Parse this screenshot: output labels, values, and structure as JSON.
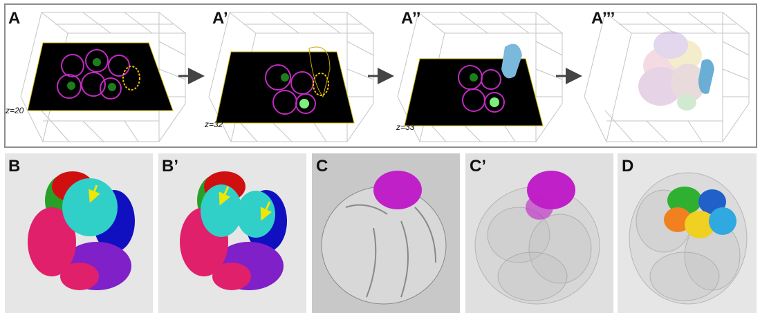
{
  "panels_top": [
    {
      "label": "A",
      "z_label": "z=20"
    },
    {
      "label": "A’",
      "z_label": "z=32"
    },
    {
      "label": "A’’",
      "z_label": "z=33"
    },
    {
      "label": "A’’’"
    }
  ],
  "panels_bottom": [
    {
      "label": "B"
    },
    {
      "label": "B’"
    },
    {
      "label": "C"
    },
    {
      "label": "C’"
    },
    {
      "label": "D"
    }
  ]
}
